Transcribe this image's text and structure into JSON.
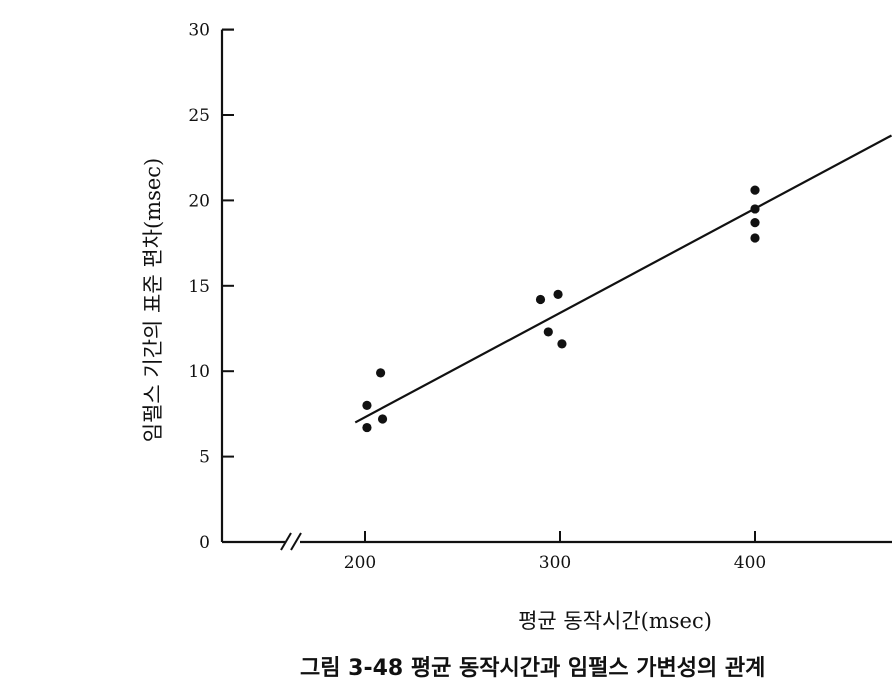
{
  "caption": "그림 3-48 평균 동작시간과 임펄스 가변성의 관계",
  "chart_data": {
    "type": "scatter",
    "title": "",
    "xlabel": "평균 동작시간(msec)",
    "ylabel": "임펄스 기간의 표준 편차(msec)",
    "x_ticks": [
      200,
      300,
      400
    ],
    "y_ticks": [
      0,
      5,
      10,
      15,
      20,
      25,
      30
    ],
    "xlim": [
      130,
      470
    ],
    "ylim": [
      0,
      30
    ],
    "x_axis_break": true,
    "grid": false,
    "series": [
      {
        "points": [
          {
            "x": 201,
            "y": 8.0
          },
          {
            "x": 201,
            "y": 6.7
          },
          {
            "x": 208,
            "y": 9.9
          },
          {
            "x": 209,
            "y": 7.2
          },
          {
            "x": 290,
            "y": 14.2
          },
          {
            "x": 294,
            "y": 12.3
          },
          {
            "x": 299,
            "y": 14.5
          },
          {
            "x": 301,
            "y": 11.6
          },
          {
            "x": 400,
            "y": 20.6
          },
          {
            "x": 400,
            "y": 19.5
          },
          {
            "x": 400,
            "y": 18.7
          },
          {
            "x": 400,
            "y": 17.8
          }
        ]
      }
    ],
    "trend_line": {
      "x": [
        195,
        470
      ],
      "y": [
        7.0,
        23.8
      ]
    },
    "color": "#111111"
  }
}
